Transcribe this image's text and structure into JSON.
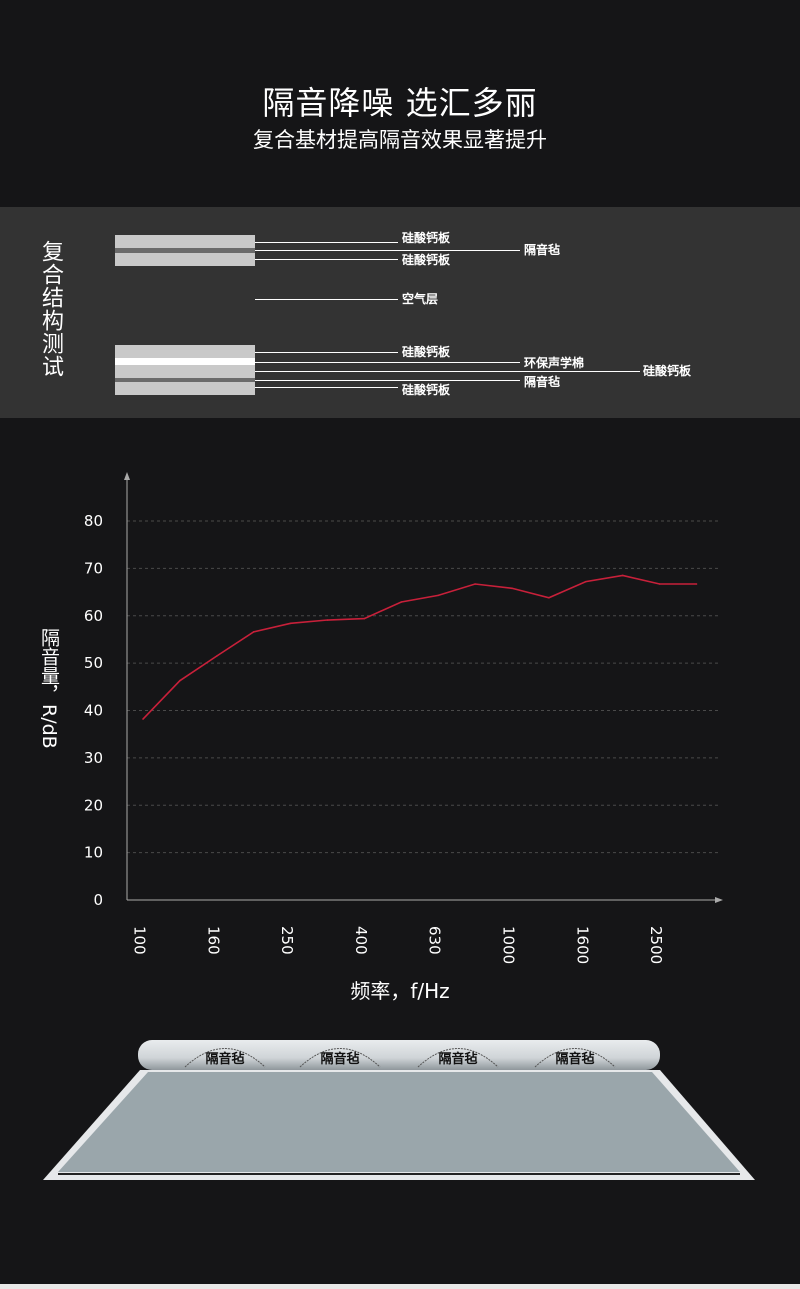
{
  "header": {
    "title": "隔音降噪 选汇多丽",
    "subtitle": "复合基材提高隔音效果显著提升"
  },
  "structure": {
    "title": "复合结构测试",
    "labels": {
      "board1": "硅酸钙板",
      "felt1": "隔音毡",
      "board2": "硅酸钙板",
      "air": "空气层",
      "board3": "硅酸钙板",
      "cotton": "环保声学棉",
      "board_mid": "硅酸钙板",
      "felt2": "隔音毡",
      "board4": "硅酸钙板"
    },
    "colors": {
      "board": "#c9c9c9",
      "felt": "#6b6b6b",
      "cotton": "#ffffff"
    }
  },
  "chart_data": {
    "type": "line",
    "ylabel": "隔音量，R/dB",
    "xlabel": "频率，f/Hz",
    "ylim": [
      0,
      80
    ],
    "yticks": [
      0,
      10,
      20,
      30,
      40,
      50,
      60,
      70,
      80
    ],
    "x": [
      100,
      125,
      160,
      200,
      250,
      315,
      400,
      500,
      630,
      800,
      1000,
      1250,
      1600,
      2000,
      2500,
      3150
    ],
    "xtick_labels": [
      "100",
      "160",
      "250",
      "400",
      "630",
      "1000",
      "1600",
      "2500"
    ],
    "values": [
      38.2,
      46.3,
      51.5,
      56.6,
      58.4,
      59.1,
      59.4,
      62.9,
      64.3,
      66.7,
      65.8,
      63.8,
      67.2,
      68.5,
      66.7,
      66.7
    ],
    "grid": "horizontal dashed",
    "line_color": "#c8203a"
  },
  "product": {
    "logo_text": "隔音毡"
  }
}
